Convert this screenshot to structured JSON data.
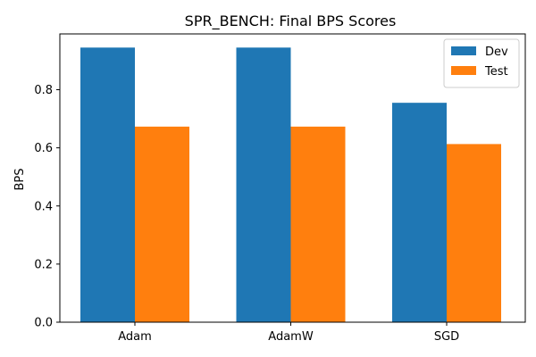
{
  "chart_data": {
    "type": "bar",
    "title": "SPR_BENCH: Final BPS Scores",
    "xlabel": "",
    "ylabel": "BPS",
    "categories": [
      "Adam",
      "AdamW",
      "SGD"
    ],
    "series": [
      {
        "name": "Dev",
        "values": [
          0.945,
          0.945,
          0.755
        ],
        "color": "#1f77b4"
      },
      {
        "name": "Test",
        "values": [
          0.673,
          0.673,
          0.613
        ],
        "color": "#ff7f0e"
      }
    ],
    "ylim": [
      0,
      0.992
    ],
    "yticks": [
      0.0,
      0.2,
      0.4,
      0.6,
      0.8
    ],
    "ytick_labels": [
      "0.0",
      "0.2",
      "0.4",
      "0.6",
      "0.8"
    ],
    "legend_position": "top-right",
    "grid": false
  }
}
